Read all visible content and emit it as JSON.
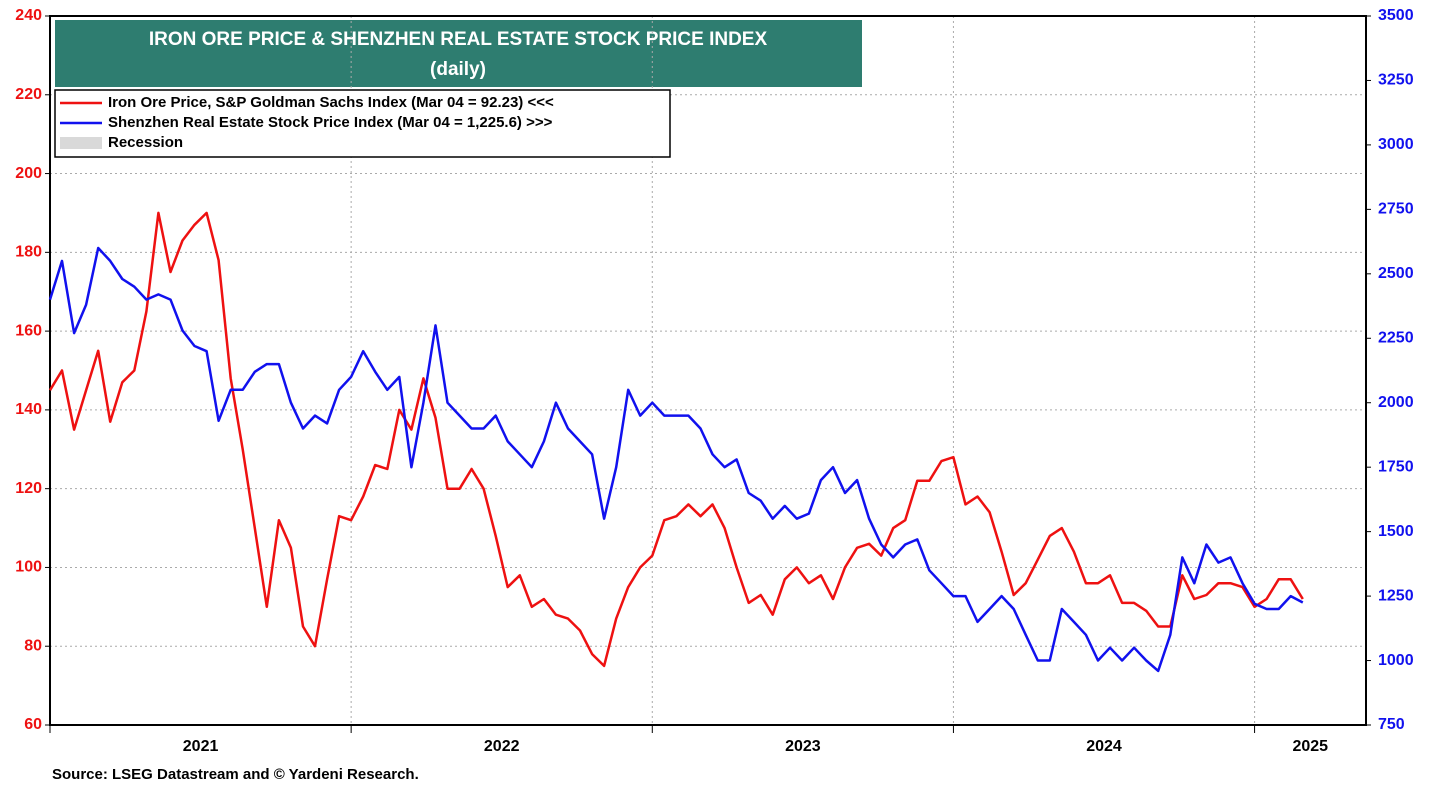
{
  "chart_data": {
    "type": "line",
    "title": "IRON ORE PRICE & SHENZHEN REAL ESTATE STOCK PRICE INDEX",
    "subtitle": "(daily)",
    "source": "Source: LSEG Datastream and © Yardeni Research.",
    "recession_label": "Recession",
    "recession_color": "#d9d9d9",
    "x": [
      2021.0,
      2021.04,
      2021.08,
      2021.12,
      2021.16,
      2021.2,
      2021.24,
      2021.28,
      2021.32,
      2021.36,
      2021.4,
      2021.44,
      2021.48,
      2021.52,
      2021.56,
      2021.6,
      2021.64,
      2021.68,
      2021.72,
      2021.76,
      2021.8,
      2021.84,
      2021.88,
      2021.92,
      2021.96,
      2022.0,
      2022.04,
      2022.08,
      2022.12,
      2022.16,
      2022.2,
      2022.24,
      2022.28,
      2022.32,
      2022.36,
      2022.4,
      2022.44,
      2022.48,
      2022.52,
      2022.56,
      2022.6,
      2022.64,
      2022.68,
      2022.72,
      2022.76,
      2022.8,
      2022.84,
      2022.88,
      2022.92,
      2022.96,
      2023.0,
      2023.04,
      2023.08,
      2023.12,
      2023.16,
      2023.2,
      2023.24,
      2023.28,
      2023.32,
      2023.36,
      2023.4,
      2023.44,
      2023.48,
      2023.52,
      2023.56,
      2023.6,
      2023.64,
      2023.68,
      2023.72,
      2023.76,
      2023.8,
      2023.84,
      2023.88,
      2023.92,
      2023.96,
      2024.0,
      2024.04,
      2024.08,
      2024.12,
      2024.16,
      2024.2,
      2024.24,
      2024.28,
      2024.32,
      2024.36,
      2024.4,
      2024.44,
      2024.48,
      2024.52,
      2024.56,
      2024.6,
      2024.64,
      2024.68,
      2024.72,
      2024.76,
      2024.8,
      2024.84,
      2024.88,
      2024.92,
      2024.96,
      2025.0,
      2025.04,
      2025.08,
      2025.12,
      2025.16
    ],
    "series": [
      {
        "name": "Iron Ore Price, S&P Goldman Sachs Index (Mar 04 = 92.23) <<<",
        "color": "#ee1111",
        "axis": "y",
        "values": [
          145,
          150,
          135,
          145,
          155,
          137,
          147,
          150,
          165,
          190,
          175,
          183,
          187,
          190,
          178,
          148,
          130,
          110,
          90,
          112,
          105,
          85,
          80,
          97,
          113,
          112,
          118,
          126,
          125,
          140,
          135,
          148,
          138,
          120,
          120,
          125,
          120,
          108,
          95,
          98,
          90,
          92,
          88,
          87,
          84,
          78,
          75,
          87,
          95,
          100,
          103,
          112,
          113,
          116,
          113,
          116,
          110,
          100,
          91,
          93,
          88,
          97,
          100,
          96,
          98,
          92,
          100,
          105,
          106,
          103,
          110,
          112,
          122,
          122,
          127,
          128,
          116,
          118,
          114,
          104,
          93,
          96,
          102,
          108,
          110,
          104,
          96,
          96,
          98,
          91,
          91,
          89,
          85,
          85,
          98,
          92,
          93,
          96,
          96,
          95,
          90,
          92,
          97,
          97,
          92
        ]
      },
      {
        "name": "Shenzhen Real Estate Stock Price Index (Mar 04 = 1,225.6) >>>",
        "color": "#1111ee",
        "axis": "y2",
        "values": [
          2400,
          2550,
          2270,
          2380,
          2600,
          2550,
          2480,
          2450,
          2400,
          2420,
          2400,
          2280,
          2220,
          2200,
          1930,
          2050,
          2050,
          2120,
          2150,
          2150,
          2000,
          1900,
          1950,
          1920,
          2050,
          2100,
          2200,
          2120,
          2050,
          2100,
          1750,
          2000,
          2300,
          2000,
          1950,
          1900,
          1900,
          1950,
          1850,
          1800,
          1750,
          1850,
          2000,
          1900,
          1850,
          1800,
          1550,
          1750,
          2050,
          1950,
          2000,
          1950,
          1950,
          1950,
          1900,
          1800,
          1750,
          1780,
          1650,
          1620,
          1550,
          1600,
          1550,
          1570,
          1700,
          1750,
          1650,
          1700,
          1550,
          1450,
          1400,
          1450,
          1470,
          1350,
          1300,
          1250,
          1250,
          1150,
          1200,
          1250,
          1200,
          1100,
          1000,
          1000,
          1200,
          1150,
          1100,
          1000,
          1050,
          1000,
          1050,
          1000,
          960,
          1100,
          1400,
          1300,
          1450,
          1380,
          1400,
          1300,
          1220,
          1200,
          1200,
          1250,
          1225
        ]
      }
    ],
    "xlim": [
      2021.0,
      2025.37
    ],
    "xticks": [
      {
        "value": 2021,
        "label": "2021"
      },
      {
        "value": 2022,
        "label": "2022"
      },
      {
        "value": 2023,
        "label": "2023"
      },
      {
        "value": 2024,
        "label": "2024"
      },
      {
        "value": 2025,
        "label": "2025"
      }
    ],
    "ylim": [
      60,
      240
    ],
    "yticks": [
      60,
      80,
      100,
      120,
      140,
      160,
      180,
      200,
      220,
      240
    ],
    "y2lim": [
      750,
      3500
    ],
    "y2ticks": [
      750,
      1000,
      1250,
      1500,
      1750,
      2000,
      2250,
      2500,
      2750,
      3000,
      3250,
      3500
    ],
    "grid": true
  }
}
